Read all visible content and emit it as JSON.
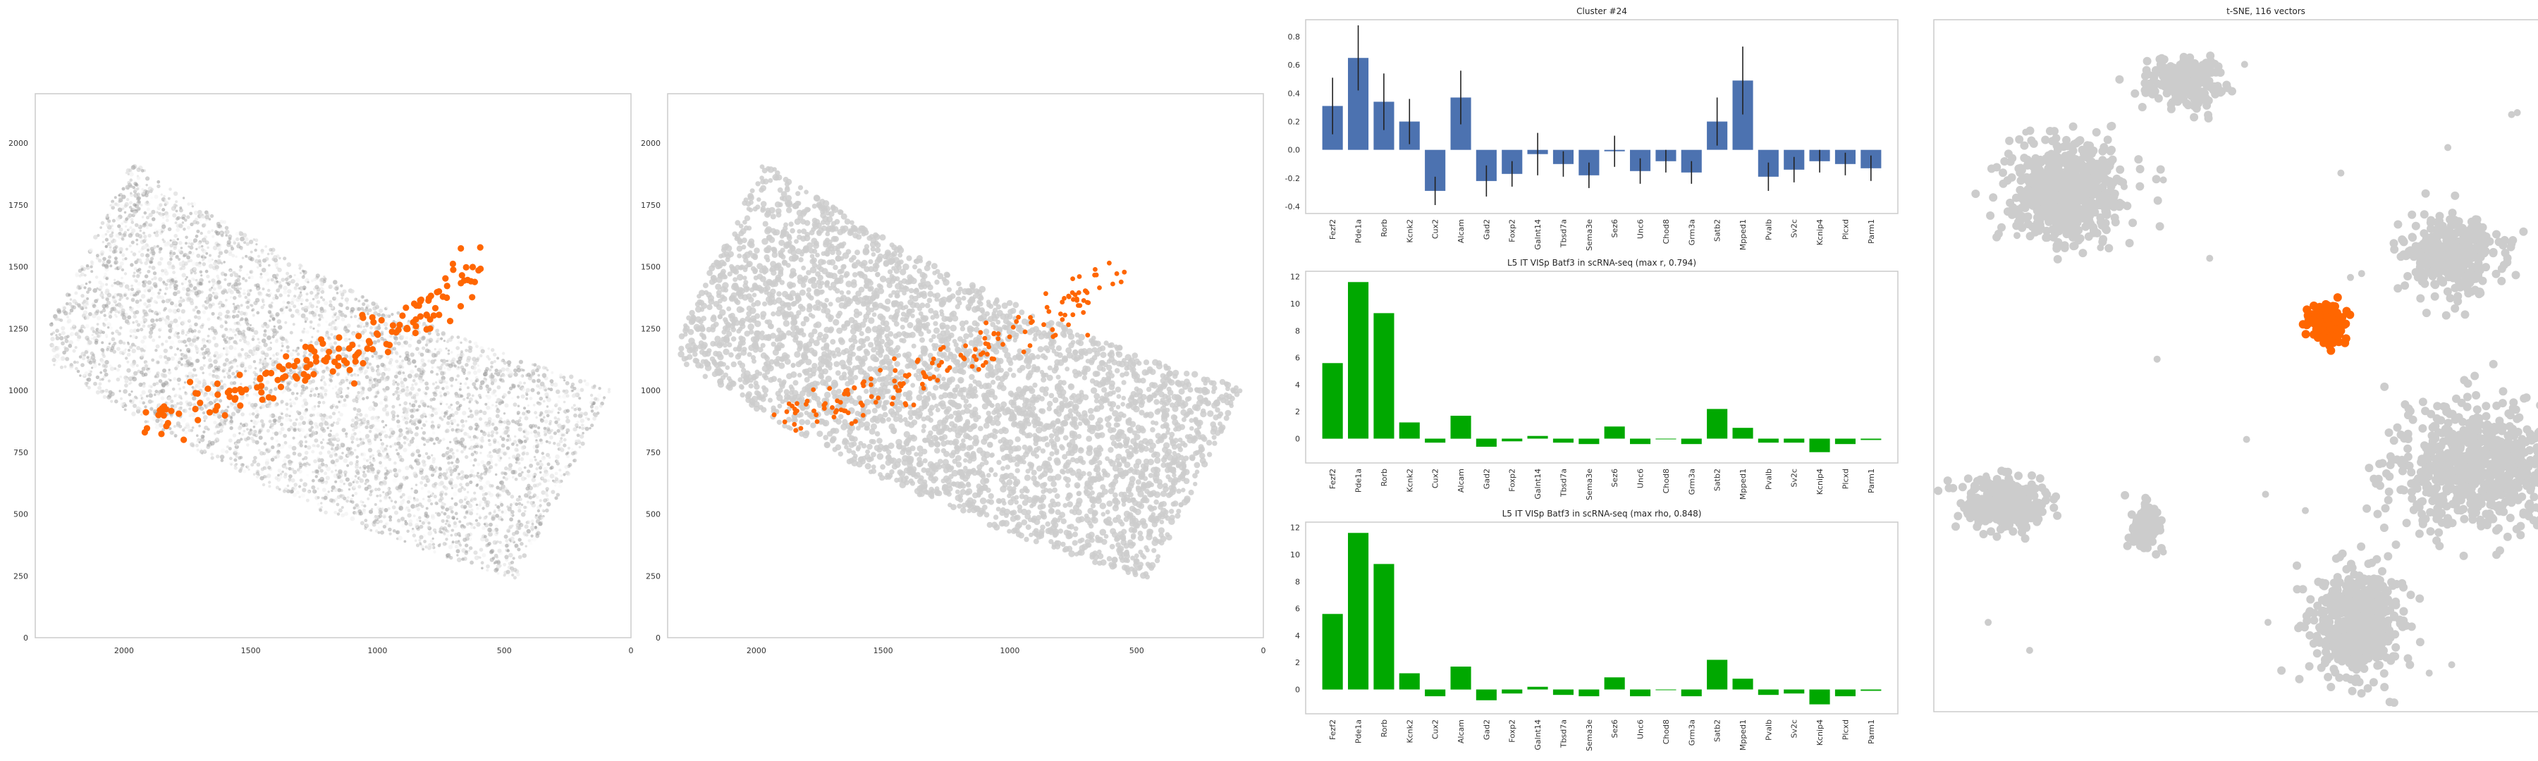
{
  "colors": {
    "accent": "#ff6600",
    "bar_blue": "#4c72b0",
    "bar_green": "#00a800",
    "gray": "#cccccc",
    "frame": "#cccccc"
  },
  "chart_data": [
    {
      "id": "spatial-raw",
      "type": "scatter",
      "title": "",
      "xticks": [
        "2000",
        "1500",
        "1000",
        "500",
        "0"
      ],
      "yticks": [
        "0",
        "250",
        "500",
        "750",
        "1000",
        "1250",
        "1500",
        "1750",
        "2000"
      ],
      "xlim": [
        2350,
        0
      ],
      "ylim": [
        2200,
        0
      ],
      "highlight_band": {
        "x": [
          1900,
          1700,
          1550,
          1400,
          1250,
          1100,
          950,
          800,
          700,
          600
        ],
        "y": [
          870,
          930,
          990,
          1050,
          1110,
          1180,
          1250,
          1320,
          1400,
          1480
        ]
      }
    },
    {
      "id": "spatial-segmented",
      "type": "scatter",
      "title": "",
      "xticks": [
        "2000",
        "1500",
        "1000",
        "500",
        "0"
      ],
      "yticks": [
        "0",
        "250",
        "500",
        "750",
        "1000",
        "1250",
        "1500",
        "1750",
        "2000"
      ],
      "xlim": [
        2350,
        0
      ],
      "ylim": [
        2200,
        0
      ]
    },
    {
      "id": "cluster-bar",
      "type": "bar",
      "title": "Cluster #24",
      "categories": [
        "Fezf2",
        "Pde1a",
        "Rorb",
        "Kcnk2",
        "Cux2",
        "Alcam",
        "Gad2",
        "Foxp2",
        "Galnt14",
        "Tbsd7a",
        "Sema3e",
        "Sez6",
        "Unc6",
        "Chod8",
        "Grm3a",
        "Satb2",
        "Mpped1",
        "Pvalb",
        "Sv2c",
        "Kcnip4",
        "Plcxd",
        "Parm1"
      ],
      "values": [
        0.31,
        0.65,
        0.34,
        0.2,
        -0.29,
        0.37,
        -0.22,
        -0.17,
        -0.03,
        -0.1,
        -0.18,
        -0.01,
        -0.15,
        -0.08,
        -0.16,
        0.2,
        0.49,
        -0.19,
        -0.14,
        -0.08,
        -0.1,
        -0.13
      ],
      "errors": [
        0.2,
        0.23,
        0.2,
        0.16,
        0.1,
        0.19,
        0.11,
        0.09,
        0.15,
        0.09,
        0.09,
        0.11,
        0.09,
        0.08,
        0.08,
        0.17,
        0.24,
        0.1,
        0.09,
        0.08,
        0.08,
        0.09
      ],
      "yticks": [
        -0.4,
        -0.2,
        0.0,
        0.2,
        0.4,
        0.6,
        0.8
      ],
      "ylim": [
        -0.45,
        0.92
      ]
    },
    {
      "id": "scrna-bar-r",
      "type": "bar",
      "title": "L5 IT VISp Batf3 in scRNA-seq (max r, 0.794)",
      "categories": [
        "Fezf2",
        "Pde1a",
        "Rorb",
        "Kcnk2",
        "Cux2",
        "Alcam",
        "Gad2",
        "Foxp2",
        "Galnt14",
        "Tbsd7a",
        "Sema3e",
        "Sez6",
        "Unc6",
        "Chod8",
        "Grm3a",
        "Satb2",
        "Mpped1",
        "Pvalb",
        "Sv2c",
        "Kcnip4",
        "Plcxd",
        "Parm1"
      ],
      "values": [
        5.6,
        11.6,
        9.3,
        1.2,
        -0.3,
        1.7,
        -0.6,
        -0.2,
        0.2,
        -0.3,
        -0.4,
        0.9,
        -0.4,
        -0.05,
        -0.4,
        2.2,
        0.8,
        -0.3,
        -0.3,
        -1.0,
        -0.4,
        -0.1
      ],
      "yticks": [
        0,
        2,
        4,
        6,
        8,
        10,
        12
      ],
      "ylim": [
        -1.8,
        12.4
      ]
    },
    {
      "id": "scrna-bar-rho",
      "type": "bar",
      "title": "L5 IT VISp Batf3 in scRNA-seq (max rho, 0.848)",
      "categories": [
        "Fezf2",
        "Pde1a",
        "Rorb",
        "Kcnk2",
        "Cux2",
        "Alcam",
        "Gad2",
        "Foxp2",
        "Galnt14",
        "Tbsd7a",
        "Sema3e",
        "Sez6",
        "Unc6",
        "Chod8",
        "Grm3a",
        "Satb2",
        "Mpped1",
        "Pvalb",
        "Sv2c",
        "Kcnip4",
        "Plcxd",
        "Parm1"
      ],
      "values": [
        5.6,
        11.6,
        9.3,
        1.2,
        -0.5,
        1.7,
        -0.8,
        -0.3,
        0.2,
        -0.4,
        -0.5,
        0.9,
        -0.5,
        -0.05,
        -0.5,
        2.2,
        0.8,
        -0.4,
        -0.3,
        -1.1,
        -0.5,
        -0.1
      ],
      "yticks": [
        0,
        2,
        4,
        6,
        8,
        10,
        12
      ],
      "ylim": [
        -1.8,
        12.4
      ]
    },
    {
      "id": "tsne",
      "type": "scatter",
      "title": "t-SNE, 116 vectors",
      "clusters": [
        {
          "cx": 0.38,
          "cy": 0.09,
          "rx": 0.06,
          "ry": 0.04,
          "n": 240,
          "highlight": false
        },
        {
          "cx": 0.2,
          "cy": 0.25,
          "rx": 0.09,
          "ry": 0.08,
          "n": 700,
          "highlight": false
        },
        {
          "cx": 0.78,
          "cy": 0.34,
          "rx": 0.08,
          "ry": 0.06,
          "n": 420,
          "highlight": false
        },
        {
          "cx": 0.59,
          "cy": 0.44,
          "rx": 0.03,
          "ry": 0.03,
          "n": 160,
          "highlight": true
        },
        {
          "cx": 0.1,
          "cy": 0.7,
          "rx": 0.07,
          "ry": 0.04,
          "n": 280,
          "highlight": false
        },
        {
          "cx": 0.32,
          "cy": 0.73,
          "rx": 0.025,
          "ry": 0.04,
          "n": 90,
          "highlight": false
        },
        {
          "cx": 0.82,
          "cy": 0.65,
          "rx": 0.14,
          "ry": 0.1,
          "n": 800,
          "highlight": false
        },
        {
          "cx": 0.64,
          "cy": 0.87,
          "rx": 0.07,
          "ry": 0.08,
          "n": 600,
          "highlight": false
        }
      ]
    }
  ]
}
